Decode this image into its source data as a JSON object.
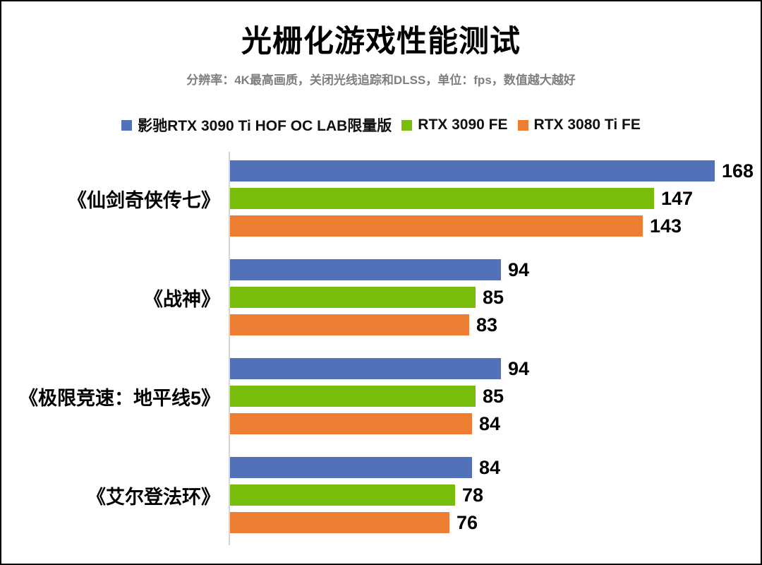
{
  "page": {
    "background": "#ffffff",
    "border_color": "#000000",
    "axis_color": "#d6d6d6",
    "subtitle_color": "#7f7f7f"
  },
  "chart_data": {
    "type": "bar",
    "orientation": "horizontal",
    "title": "光栅化游戏性能测试",
    "subtitle": "分辨率：4K最高画质，关闭光线追踪和DLSS，单位：fps，数值越大越好",
    "unit": "fps",
    "legend_position": "top",
    "grid": false,
    "value_labels": true,
    "xlim": [
      0,
      180
    ],
    "categories": [
      "《仙剑奇侠传七》",
      "《战神》",
      "《极限竞速：地平线5》",
      "《艾尔登法环》"
    ],
    "series": [
      {
        "name": "影驰RTX 3090 Ti HOF OC LAB限量版",
        "color": "#5271B8",
        "values": [
          168,
          94,
          94,
          84
        ]
      },
      {
        "name": "RTX 3090 FE",
        "color": "#77BD0A",
        "values": [
          147,
          85,
          85,
          78
        ]
      },
      {
        "name": "RTX 3080 Ti FE",
        "color": "#EC7D33",
        "values": [
          143,
          83,
          84,
          76
        ]
      }
    ]
  }
}
